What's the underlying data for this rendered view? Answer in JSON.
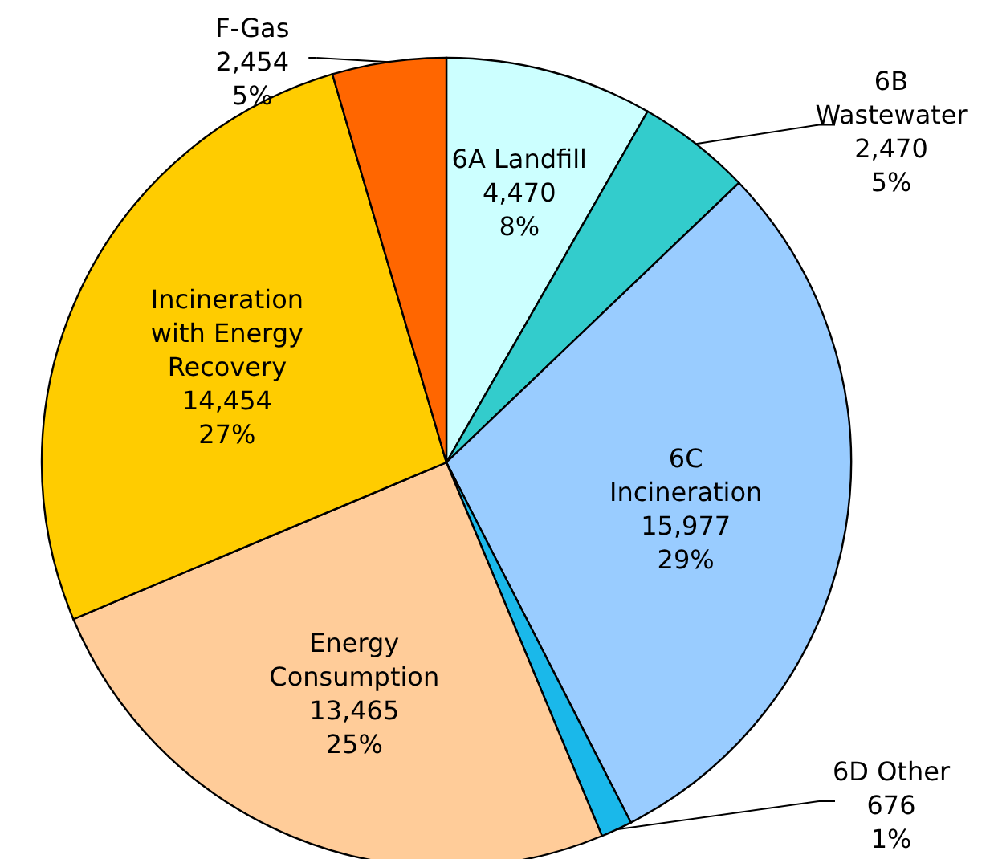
{
  "chart_data": {
    "type": "pie",
    "categories": [
      "6A Landfill",
      "6B\nWastewater",
      "6C\nIncineration",
      "6D Other",
      "Energy\nConsumption",
      "Incineration\nwith Energy\nRecovery",
      "F-Gas"
    ],
    "values": [
      4470,
      2470,
      15977,
      676,
      13465,
      14454,
      2454
    ],
    "value_labels": [
      "4,470\n8%",
      "2,470\n5%",
      "15,977\n29%",
      "676\n1%",
      "13,465\n25%",
      "14,454\n27%",
      "2,454\n5%"
    ],
    "colors": [
      "#ccffff",
      "#33cccc",
      "#99ccff",
      "#1ab8ea",
      "#ffcc99",
      "#ffcc00",
      "#ff6600"
    ]
  }
}
